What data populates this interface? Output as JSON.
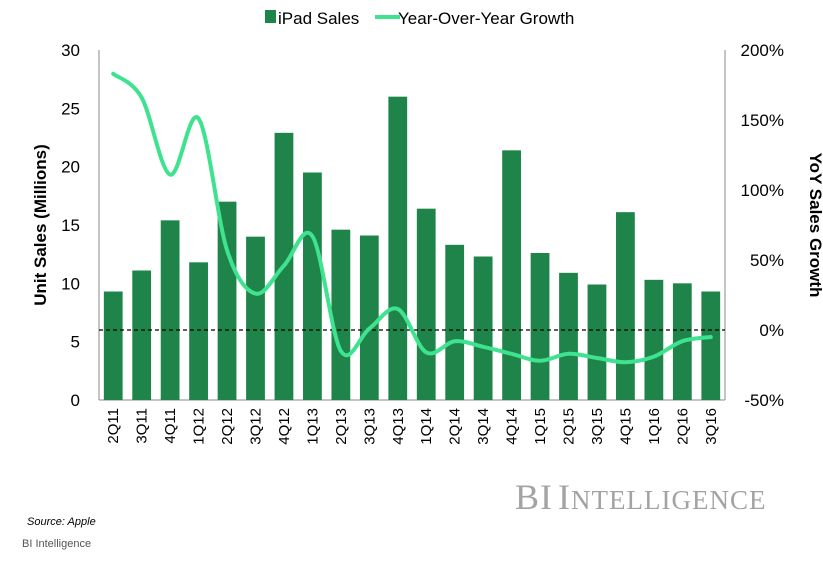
{
  "chart_data": {
    "type": "bar+line",
    "categories": [
      "2Q11",
      "3Q11",
      "4Q11",
      "1Q12",
      "2Q12",
      "3Q12",
      "4Q12",
      "1Q13",
      "2Q13",
      "3Q13",
      "4Q13",
      "1Q14",
      "2Q14",
      "3Q14",
      "4Q14",
      "1Q15",
      "2Q15",
      "3Q15",
      "4Q15",
      "1Q16",
      "2Q16",
      "3Q16"
    ],
    "series": [
      {
        "name": "iPad Sales",
        "type": "bar",
        "axis": "left",
        "color": "#1e8449",
        "values": [
          9.3,
          11.1,
          15.4,
          11.8,
          17.0,
          14.0,
          22.9,
          19.5,
          14.6,
          14.1,
          26.0,
          16.4,
          13.3,
          12.3,
          21.4,
          12.6,
          10.9,
          9.9,
          16.1,
          10.3,
          10.0,
          9.3
        ]
      },
      {
        "name": "Year-Over-Year Growth",
        "type": "line",
        "axis": "right",
        "color": "#3ee28f",
        "values": [
          183,
          166,
          111,
          151,
          57,
          26,
          46,
          67,
          -15,
          1,
          15,
          -16,
          -8,
          -12,
          -17,
          -22,
          -17,
          -20,
          -23,
          -19,
          -8,
          -5
        ]
      }
    ],
    "ylabel": "Unit Sales (Millions)",
    "y2label": "YoY Sales Growth",
    "ylim": [
      0,
      30
    ],
    "y2lim": [
      -50,
      200
    ],
    "yticks": [
      "0",
      "5",
      "10",
      "15",
      "20",
      "25",
      "30"
    ],
    "y2ticks": [
      "-50%",
      "0%",
      "50%",
      "100%",
      "150%",
      "200%"
    ],
    "zero_line": "dashed at 0%",
    "legend": "top-center",
    "grid": false
  },
  "footer": {
    "brand_initials": "BI",
    "brand_name_first": "I",
    "brand_name_rest": "NTELLIGENCE",
    "source": "Source: Apple",
    "credit": "BI Intelligence"
  }
}
